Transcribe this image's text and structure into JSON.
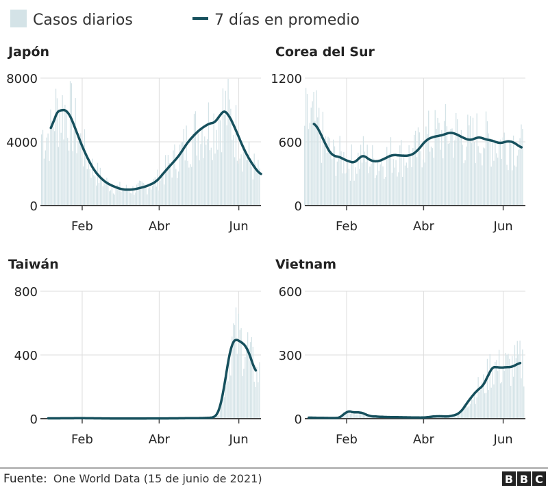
{
  "legend": {
    "bars_label": "Casos diarios",
    "line_label": "7 días en promedio"
  },
  "colors": {
    "bars": "#d4e3e7",
    "line": "#16505d",
    "grid": "#dddddd",
    "axis": "#444444"
  },
  "footer": {
    "source_label": "Fuente:",
    "source_text": "One World Data (15 de junio de 2021)",
    "logo": "BBC",
    "logo_letters": [
      "B",
      "B",
      "C"
    ]
  },
  "chart_data": [
    {
      "type": "bar+line",
      "title": "Japón",
      "xlabel": "",
      "ylabel": "",
      "x_units": "days since 1 Jan 2021",
      "xlim": [
        -1,
        168
      ],
      "ylim": [
        0,
        8000
      ],
      "yticks": [
        0,
        4000,
        8000
      ],
      "ytick_labels": [
        "0",
        "4000",
        "8000"
      ],
      "xticks": [
        31,
        90,
        151
      ],
      "xtick_labels": [
        "Feb",
        "Abr",
        "Jun"
      ],
      "avg7": {
        "x": [
          7,
          10,
          14,
          20,
          25,
          32,
          40,
          48,
          55,
          62,
          70,
          80,
          88,
          95,
          105,
          112,
          120,
          127,
          130,
          134,
          138,
          142,
          148,
          155,
          162,
          168
        ],
        "y": [
          4500,
          5800,
          6000,
          6000,
          5000,
          3500,
          2200,
          1500,
          1200,
          1000,
          1000,
          1200,
          1500,
          2200,
          3100,
          4000,
          4700,
          5100,
          5200,
          5200,
          6000,
          5900,
          4900,
          3500,
          2500,
          1900
        ]
      },
      "daily_start": 0,
      "daily_end": 167
    },
    {
      "type": "bar+line",
      "title": "Corea del Sur",
      "xlabel": "",
      "ylabel": "",
      "x_units": "days since 1 Jan 2021",
      "xlim": [
        -1,
        168
      ],
      "ylim": [
        0,
        1200
      ],
      "yticks": [
        0,
        600,
        1200
      ],
      "ytick_labels": [
        "0",
        "600",
        "1200"
      ],
      "xticks": [
        31,
        90,
        151
      ],
      "xtick_labels": [
        "Feb",
        "Abr",
        "Jun"
      ],
      "avg7": {
        "x": [
          6,
          9,
          13,
          20,
          24,
          28,
          34,
          38,
          43,
          48,
          54,
          60,
          66,
          72,
          80,
          85,
          92,
          98,
          104,
          110,
          114,
          120,
          126,
          132,
          138,
          144,
          148,
          152,
          156,
          160,
          165
        ],
        "y": [
          780,
          740,
          620,
          460,
          470,
          440,
          410,
          400,
          490,
          430,
          410,
          440,
          480,
          470,
          470,
          510,
          620,
          650,
          660,
          690,
          680,
          640,
          610,
          650,
          620,
          610,
          580,
          600,
          610,
          590,
          540
        ]
      },
      "daily_start": -1,
      "daily_end": 166
    },
    {
      "type": "bar+line",
      "title": "Taiwán",
      "xlabel": "",
      "ylabel": "",
      "x_units": "days since 1 Jan 2021",
      "xlim": [
        -1,
        168
      ],
      "ylim": [
        0,
        800
      ],
      "yticks": [
        0,
        400,
        800
      ],
      "ytick_labels": [
        "0",
        "400",
        "800"
      ],
      "xticks": [
        31,
        90,
        151
      ],
      "xtick_labels": [
        "Feb",
        "Abr",
        "Jun"
      ],
      "avg7": {
        "x": [
          5,
          30,
          60,
          100,
          125,
          133,
          136,
          139,
          142,
          145,
          147,
          151,
          155,
          158,
          161,
          164
        ],
        "y": [
          2,
          3,
          1,
          2,
          4,
          8,
          40,
          150,
          320,
          470,
          505,
          490,
          470,
          440,
          360,
          280
        ]
      },
      "daily_start": 5,
      "daily_end": 167
    },
    {
      "type": "bar+line",
      "title": "Vietnam",
      "xlabel": "",
      "ylabel": "",
      "x_units": "days since 1 Jan 2021",
      "xlim": [
        -1,
        168
      ],
      "ylim": [
        0,
        600
      ],
      "yticks": [
        0,
        300,
        600
      ],
      "ytick_labels": [
        "0",
        "300",
        "600"
      ],
      "xticks": [
        31,
        90,
        151
      ],
      "xtick_labels": [
        "Feb",
        "Abr",
        "Jun"
      ],
      "avg7": {
        "x": [
          2,
          20,
          27,
          31,
          34,
          38,
          42,
          48,
          60,
          90,
          100,
          110,
          118,
          125,
          132,
          137,
          141,
          145,
          148,
          152,
          156,
          160,
          164
        ],
        "y": [
          5,
          3,
          4,
          40,
          32,
          28,
          32,
          12,
          8,
          5,
          12,
          10,
          25,
          90,
          140,
          160,
          235,
          250,
          235,
          245,
          240,
          250,
          265
        ]
      },
      "daily_start": 2,
      "daily_end": 167
    }
  ]
}
